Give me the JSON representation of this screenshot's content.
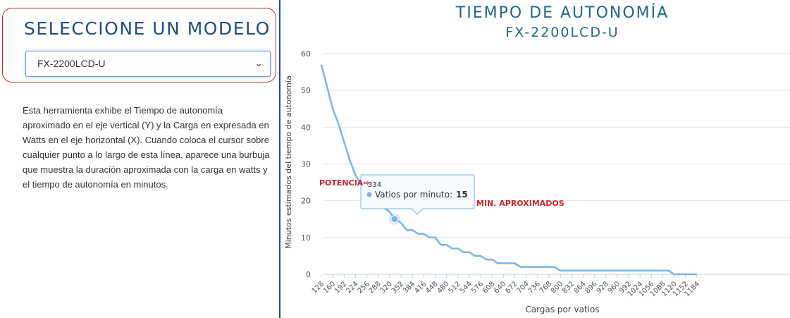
{
  "selector": {
    "title": "SELECCIONE UN MODELO",
    "selected_value": "FX-2200LCD-U"
  },
  "description": "Esta herramienta exhibe el Tiempo de autonomía aproximado en el eje vertical (Y) y la Carga en expresada en Watts en el eje horizontal (X). Cuando coloca el cursor sobre cualquier punto a lo largo de esta línea, aparece una burbuja que muestra la duración aproximada con la carga en watts y el tiempo de autonomía en minutos.",
  "chart": {
    "title": "TIEMPO DE AUTONOMÍA",
    "subtitle": "FX-2200LCD-U"
  },
  "tooltip": {
    "x_value": "334",
    "series_label": "Vatios por minuto:",
    "y_value": "15"
  },
  "annotations": {
    "potencia": "POTENCIA⇨",
    "min": "MIN. APROXIMADOS"
  },
  "colors": {
    "line": "#7cb5ec",
    "title": "#1f6a8a",
    "accent_red": "#c7252b"
  },
  "chart_data": {
    "type": "line",
    "title": "TIEMPO DE AUTONOMÍA",
    "subtitle": "FX-2200LCD-U",
    "xlabel": "Cargas por vatios",
    "ylabel": "Minutos estimados del tiempo de autonomía",
    "ylim": [
      0,
      60
    ],
    "yticks": [
      0,
      10,
      20,
      30,
      40,
      50,
      60
    ],
    "xticks": [
      128,
      160,
      192,
      224,
      256,
      288,
      320,
      352,
      384,
      416,
      448,
      480,
      512,
      544,
      576,
      608,
      640,
      672,
      704,
      736,
      768,
      800,
      832,
      864,
      896,
      928,
      960,
      992,
      1024,
      1056,
      1088,
      1120,
      1152,
      1184
    ],
    "grid": true,
    "series": [
      {
        "name": "Vatios por minuto",
        "points": [
          [
            128,
            57
          ],
          [
            160,
            45
          ],
          [
            176,
            41
          ],
          [
            192,
            36
          ],
          [
            208,
            31
          ],
          [
            224,
            27
          ],
          [
            256,
            22
          ],
          [
            288,
            19
          ],
          [
            320,
            17
          ],
          [
            334,
            15
          ],
          [
            352,
            14
          ],
          [
            368,
            12
          ],
          [
            384,
            12
          ],
          [
            400,
            11
          ],
          [
            416,
            11
          ],
          [
            432,
            10
          ],
          [
            448,
            10
          ],
          [
            464,
            8
          ],
          [
            480,
            8
          ],
          [
            496,
            7
          ],
          [
            512,
            7
          ],
          [
            528,
            6
          ],
          [
            544,
            6
          ],
          [
            560,
            5
          ],
          [
            576,
            5
          ],
          [
            592,
            4
          ],
          [
            608,
            4
          ],
          [
            624,
            3
          ],
          [
            640,
            3
          ],
          [
            656,
            3
          ],
          [
            672,
            3
          ],
          [
            688,
            2
          ],
          [
            704,
            2
          ],
          [
            736,
            2
          ],
          [
            768,
            2
          ],
          [
            784,
            2
          ],
          [
            800,
            1
          ],
          [
            832,
            1
          ],
          [
            864,
            1
          ],
          [
            896,
            1
          ],
          [
            928,
            1
          ],
          [
            960,
            1
          ],
          [
            992,
            1
          ],
          [
            1024,
            1
          ],
          [
            1056,
            1
          ],
          [
            1088,
            1
          ],
          [
            1104,
            1
          ],
          [
            1120,
            0
          ],
          [
            1184,
            0
          ]
        ]
      }
    ],
    "highlight": {
      "x": 334,
      "y": 15
    }
  }
}
